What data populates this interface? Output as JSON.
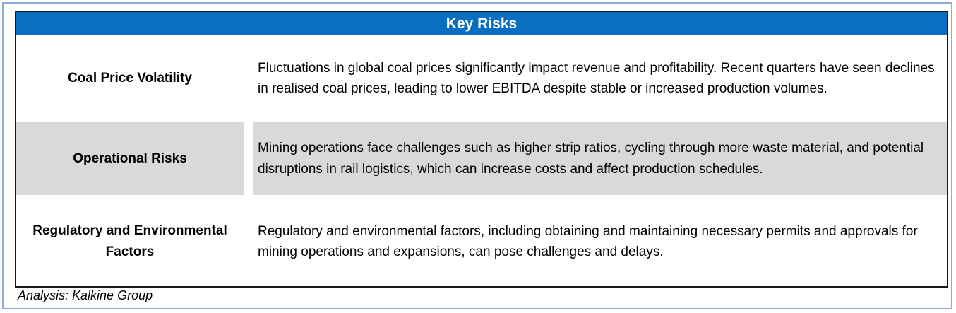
{
  "table": {
    "title": "Key Risks",
    "rows": [
      {
        "label": "Coal Price Volatility",
        "description": "Fluctuations in global coal prices significantly impact revenue and profitability. Recent quarters have seen declines in realised coal prices, leading to lower EBITDA despite stable or increased production volumes."
      },
      {
        "label": "Operational Risks",
        "description": "Mining operations face challenges such as higher strip ratios, cycling through more waste material, and potential disruptions in rail logistics, which can increase costs and affect production schedules."
      },
      {
        "label": "Regulatory and Environmental Factors",
        "description": "Regulatory and environmental factors, including obtaining and maintaining necessary permits and approvals for mining operations and expansions, can pose challenges and delays."
      }
    ]
  },
  "source_note": "Analysis: Kalkine Group",
  "colors": {
    "header_bg": "#0a6fc2",
    "shaded_row": "#d9d9d9",
    "frame_border": "#8faadc"
  }
}
